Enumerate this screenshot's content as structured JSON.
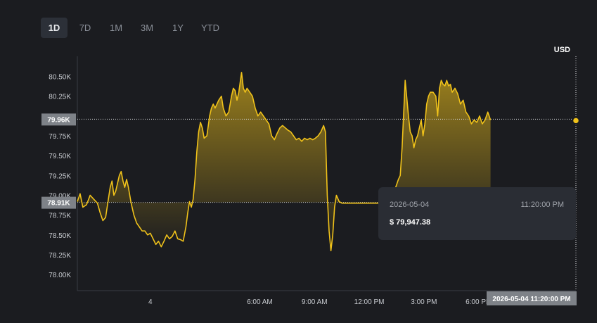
{
  "timeframes": [
    {
      "label": "1D",
      "active": true
    },
    {
      "label": "7D",
      "active": false
    },
    {
      "label": "1M",
      "active": false
    },
    {
      "label": "3M",
      "active": false
    },
    {
      "label": "1Y",
      "active": false
    },
    {
      "label": "YTD",
      "active": false
    }
  ],
  "currency": "USD",
  "tooltip": {
    "date": "2026-05-04",
    "time": "11:20:00 PM",
    "price": "$ 79,947.38"
  },
  "colors": {
    "line": "#f0c21a",
    "background": "#1b1c20",
    "axis_text": "#c8cbd0",
    "price_tag": "#7e8288",
    "tooltip_bg": "#2a2d34"
  },
  "chart_data": {
    "type": "area",
    "x_unit": "hours since 2026-05-04 00:00",
    "xlim": [
      -4,
      23.33
    ],
    "ylim": [
      77.85,
      80.7
    ],
    "y_unit": "K USD",
    "yticks": [
      {
        "value": 78.0,
        "label": "78.00K"
      },
      {
        "value": 78.25,
        "label": "78.25K"
      },
      {
        "value": 78.5,
        "label": "78.50K"
      },
      {
        "value": 78.75,
        "label": "78.75K"
      },
      {
        "value": 79.0,
        "label": "79.00K"
      },
      {
        "value": 79.25,
        "label": "79.25K"
      },
      {
        "value": 79.5,
        "label": "79.50K"
      },
      {
        "value": 79.75,
        "label": "79.75K"
      },
      {
        "value": 80.0,
        "label": "80.00K"
      },
      {
        "value": 80.25,
        "label": "80.25K"
      },
      {
        "value": 80.5,
        "label": "80.50K"
      }
    ],
    "xticks": [
      {
        "value": 0,
        "label": "4"
      },
      {
        "value": 6,
        "label": "6:00 AM"
      },
      {
        "value": 9,
        "label": "9:00 AM"
      },
      {
        "value": 12,
        "label": "12:00 PM"
      },
      {
        "value": 15,
        "label": "3:00 PM"
      },
      {
        "value": 18,
        "label": "6:00 PM"
      }
    ],
    "current_price_tag": "79.96K",
    "current_price": 79.96,
    "open_price_tag": "78.91K",
    "open_price": 78.91,
    "crosshair_label": "2026-05-04 11:20:00 PM",
    "crosshair_x": 23.33,
    "points": [
      [
        -4.0,
        78.92
      ],
      [
        -3.85,
        79.02
      ],
      [
        -3.7,
        78.85
      ],
      [
        -3.5,
        78.88
      ],
      [
        -3.3,
        79.0
      ],
      [
        -3.1,
        78.95
      ],
      [
        -2.9,
        78.9
      ],
      [
        -2.75,
        78.78
      ],
      [
        -2.6,
        78.68
      ],
      [
        -2.45,
        78.72
      ],
      [
        -2.3,
        78.95
      ],
      [
        -2.2,
        79.1
      ],
      [
        -2.1,
        79.18
      ],
      [
        -2.0,
        79.0
      ],
      [
        -1.9,
        79.05
      ],
      [
        -1.8,
        79.15
      ],
      [
        -1.7,
        79.25
      ],
      [
        -1.6,
        79.3
      ],
      [
        -1.5,
        79.18
      ],
      [
        -1.4,
        79.1
      ],
      [
        -1.3,
        79.2
      ],
      [
        -1.2,
        79.1
      ],
      [
        -1.05,
        78.9
      ],
      [
        -0.9,
        78.75
      ],
      [
        -0.75,
        78.65
      ],
      [
        -0.6,
        78.6
      ],
      [
        -0.45,
        78.55
      ],
      [
        -0.3,
        78.55
      ],
      [
        -0.15,
        78.5
      ],
      [
        0.0,
        78.52
      ],
      [
        0.15,
        78.45
      ],
      [
        0.3,
        78.38
      ],
      [
        0.45,
        78.42
      ],
      [
        0.6,
        78.35
      ],
      [
        0.75,
        78.42
      ],
      [
        0.9,
        78.5
      ],
      [
        1.05,
        78.45
      ],
      [
        1.2,
        78.48
      ],
      [
        1.35,
        78.55
      ],
      [
        1.5,
        78.45
      ],
      [
        1.65,
        78.44
      ],
      [
        1.8,
        78.42
      ],
      [
        1.95,
        78.6
      ],
      [
        2.05,
        78.78
      ],
      [
        2.15,
        78.92
      ],
      [
        2.25,
        78.85
      ],
      [
        2.35,
        78.95
      ],
      [
        2.45,
        79.2
      ],
      [
        2.55,
        79.55
      ],
      [
        2.65,
        79.8
      ],
      [
        2.75,
        79.92
      ],
      [
        2.85,
        79.85
      ],
      [
        2.95,
        79.72
      ],
      [
        3.1,
        79.75
      ],
      [
        3.25,
        80.0
      ],
      [
        3.35,
        80.1
      ],
      [
        3.45,
        80.15
      ],
      [
        3.55,
        80.1
      ],
      [
        3.65,
        80.15
      ],
      [
        3.75,
        80.2
      ],
      [
        3.9,
        80.25
      ],
      [
        4.0,
        80.1
      ],
      [
        4.15,
        80.0
      ],
      [
        4.3,
        80.05
      ],
      [
        4.45,
        80.25
      ],
      [
        4.55,
        80.35
      ],
      [
        4.65,
        80.32
      ],
      [
        4.75,
        80.2
      ],
      [
        4.85,
        80.3
      ],
      [
        5.0,
        80.55
      ],
      [
        5.1,
        80.35
      ],
      [
        5.2,
        80.3
      ],
      [
        5.3,
        80.35
      ],
      [
        5.45,
        80.3
      ],
      [
        5.6,
        80.25
      ],
      [
        5.75,
        80.1
      ],
      [
        5.9,
        80.0
      ],
      [
        6.05,
        80.05
      ],
      [
        6.2,
        80.0
      ],
      [
        6.35,
        79.95
      ],
      [
        6.5,
        79.9
      ],
      [
        6.65,
        79.75
      ],
      [
        6.8,
        79.7
      ],
      [
        6.95,
        79.78
      ],
      [
        7.1,
        79.85
      ],
      [
        7.25,
        79.88
      ],
      [
        7.4,
        79.85
      ],
      [
        7.55,
        79.82
      ],
      [
        7.7,
        79.8
      ],
      [
        7.85,
        79.75
      ],
      [
        8.0,
        79.7
      ],
      [
        8.15,
        79.72
      ],
      [
        8.3,
        79.68
      ],
      [
        8.45,
        79.72
      ],
      [
        8.6,
        79.7
      ],
      [
        8.75,
        79.72
      ],
      [
        8.9,
        79.7
      ],
      [
        9.05,
        79.72
      ],
      [
        9.2,
        79.75
      ],
      [
        9.35,
        79.8
      ],
      [
        9.5,
        79.88
      ],
      [
        9.6,
        79.8
      ],
      [
        9.7,
        79.0
      ],
      [
        9.8,
        78.55
      ],
      [
        9.9,
        78.3
      ],
      [
        10.0,
        78.5
      ],
      [
        10.1,
        78.85
      ],
      [
        10.2,
        79.0
      ],
      [
        10.35,
        78.92
      ],
      [
        10.5,
        78.9
      ],
      [
        11.0,
        78.9
      ],
      [
        12.5,
        78.9
      ],
      [
        13.0,
        78.9
      ],
      [
        13.15,
        78.92
      ],
      [
        13.3,
        78.95
      ],
      [
        13.45,
        79.1
      ],
      [
        13.6,
        79.2
      ],
      [
        13.7,
        79.25
      ],
      [
        13.8,
        79.6
      ],
      [
        13.9,
        80.1
      ],
      [
        13.97,
        80.45
      ],
      [
        14.05,
        80.25
      ],
      [
        14.15,
        80.0
      ],
      [
        14.25,
        79.8
      ],
      [
        14.35,
        79.75
      ],
      [
        14.45,
        79.6
      ],
      [
        14.55,
        79.7
      ],
      [
        14.65,
        79.75
      ],
      [
        14.75,
        79.85
      ],
      [
        14.85,
        79.95
      ],
      [
        14.95,
        79.75
      ],
      [
        15.05,
        79.9
      ],
      [
        15.15,
        80.15
      ],
      [
        15.25,
        80.25
      ],
      [
        15.35,
        80.3
      ],
      [
        15.5,
        80.3
      ],
      [
        15.65,
        80.25
      ],
      [
        15.75,
        80.0
      ],
      [
        15.85,
        80.35
      ],
      [
        15.95,
        80.45
      ],
      [
        16.05,
        80.4
      ],
      [
        16.15,
        80.38
      ],
      [
        16.25,
        80.45
      ],
      [
        16.35,
        80.38
      ],
      [
        16.45,
        80.4
      ],
      [
        16.55,
        80.3
      ],
      [
        16.7,
        80.35
      ],
      [
        16.85,
        80.28
      ],
      [
        17.0,
        80.15
      ],
      [
        17.15,
        80.2
      ],
      [
        17.3,
        80.05
      ],
      [
        17.45,
        80.0
      ],
      [
        17.6,
        79.9
      ],
      [
        17.75,
        79.95
      ],
      [
        17.9,
        79.92
      ],
      [
        18.05,
        80.0
      ],
      [
        18.2,
        79.9
      ],
      [
        18.35,
        79.95
      ],
      [
        18.5,
        80.05
      ],
      [
        18.65,
        79.95
      ]
    ]
  }
}
